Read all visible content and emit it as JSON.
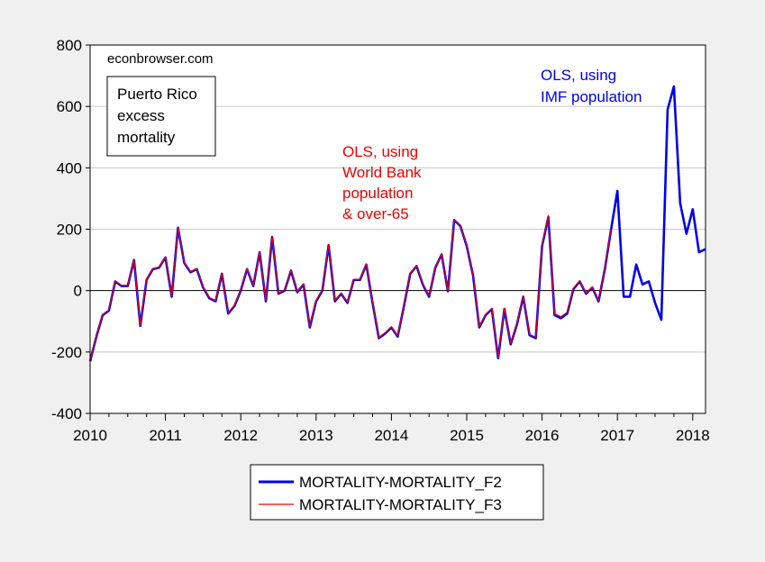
{
  "chart_data": {
    "type": "line",
    "title": "",
    "xlabel": "",
    "ylabel": "",
    "xlim": [
      2010.0,
      2018.17
    ],
    "ylim": [
      -400,
      800
    ],
    "x_ticks": [
      "2010",
      "2011",
      "2012",
      "2013",
      "2014",
      "2015",
      "2016",
      "2017",
      "2018"
    ],
    "y_ticks": [
      "-400",
      "-200",
      "0",
      "200",
      "400",
      "600",
      "800"
    ],
    "grid": true,
    "legend_position": "bottom",
    "x_start": "2010-01",
    "frequency": "monthly",
    "series": [
      {
        "name": "MORTALITY-MORTALITY_F2",
        "color": "#0000ee",
        "values": [
          -230,
          -150,
          -80,
          -65,
          30,
          15,
          15,
          100,
          -115,
          35,
          70,
          75,
          108,
          -20,
          205,
          90,
          60,
          70,
          10,
          -25,
          -35,
          55,
          -75,
          -50,
          0,
          70,
          15,
          125,
          -35,
          175,
          -10,
          0,
          65,
          -5,
          20,
          -120,
          -35,
          0,
          148,
          -35,
          -10,
          -40,
          35,
          35,
          85,
          -40,
          -155,
          -140,
          -120,
          -150,
          -50,
          55,
          80,
          20,
          -20,
          75,
          118,
          -2,
          230,
          210,
          145,
          50,
          -120,
          -80,
          -60,
          -220,
          -60,
          -175,
          -110,
          -20,
          -145,
          -155,
          145,
          240,
          -80,
          -90,
          -75,
          5,
          30,
          -10,
          10,
          -35,
          70,
          200,
          325,
          -20,
          -20,
          85,
          20,
          30,
          -40,
          -95,
          590,
          665,
          285,
          185,
          265,
          125,
          135
        ]
      },
      {
        "name": "MORTALITY-MORTALITY_F3",
        "color": "#ee0000",
        "values": [
          -228,
          -148,
          -78,
          -62,
          32,
          17,
          17,
          102,
          -112,
          37,
          72,
          77,
          110,
          -18,
          207,
          92,
          62,
          72,
          12,
          -23,
          -32,
          57,
          -72,
          -47,
          2,
          72,
          17,
          127,
          -32,
          177,
          -8,
          2,
          67,
          -3,
          22,
          -117,
          -32,
          2,
          150,
          -32,
          -8,
          -37,
          37,
          37,
          87,
          -37,
          -152,
          -137,
          -117,
          -147,
          -47,
          57,
          82,
          22,
          -18,
          77,
          120,
          0,
          232,
          212,
          147,
          52,
          -117,
          -77,
          -57,
          -217,
          -57,
          -172,
          -107,
          -17,
          -142,
          -152,
          150,
          245,
          -75,
          -85,
          -70,
          8,
          33,
          -8,
          12,
          -32,
          72,
          202
        ]
      }
    ],
    "annotations": [
      {
        "text": "econbrowser.com",
        "color": "#000000"
      },
      {
        "text": [
          "Puerto Rico",
          "excess",
          "mortality"
        ],
        "color": "#000000",
        "boxed": true
      },
      {
        "text": [
          "OLS, using",
          "World Bank",
          "population",
          "& over-65"
        ],
        "color": "#ee0000"
      },
      {
        "text": [
          "OLS, using",
          "IMF population"
        ],
        "color": "#0000ee"
      }
    ]
  }
}
